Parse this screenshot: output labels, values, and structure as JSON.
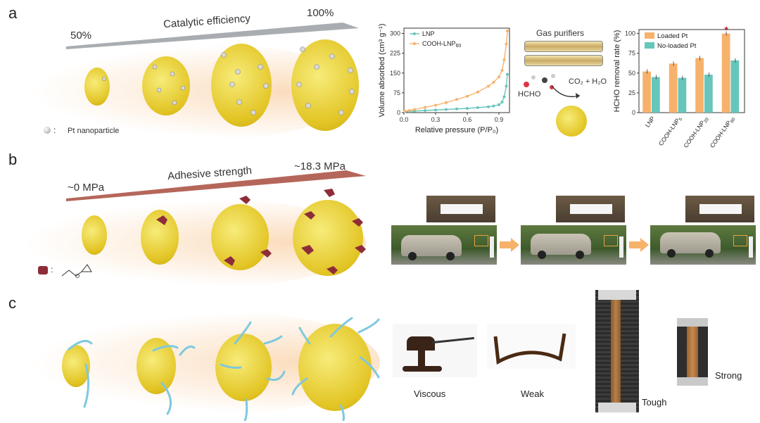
{
  "panels": {
    "a": {
      "letter": "a",
      "arrow": {
        "label": "Catalytic efficiency",
        "start": "50%",
        "end": "100%"
      },
      "legend": "Pt nanoparticle",
      "legend_colon": ":",
      "purifier": {
        "title": "Gas purifiers",
        "molecule": "HCHO",
        "product": "CO₂ + H₂O"
      }
    },
    "b": {
      "letter": "b",
      "arrow": {
        "label": "Adhesive strength",
        "start": "~0 MPa",
        "end": "~18.3 MPa"
      },
      "legend_colon": ":"
    },
    "c": {
      "letter": "c",
      "captions": [
        "Viscous",
        "Weak",
        "Tough",
        "Strong"
      ]
    }
  },
  "colors": {
    "accent_orange": "#f6b26b",
    "accent_teal": "#66c6bb",
    "particle_yellow": "#f2dc3a",
    "arrow_red": "#b5665a"
  },
  "chart_data": [
    {
      "type": "line",
      "xlabel": "Relative pressure (P/P₀)",
      "ylabel": "Volume absorbed (cm³ g⁻¹)",
      "xlim": [
        0,
        1.0
      ],
      "ylim": [
        0,
        320
      ],
      "xticks": [
        "0.0",
        "0.3",
        "0.6",
        "0.9"
      ],
      "yticks": [
        "0",
        "75",
        "150",
        "225",
        "300"
      ],
      "series": [
        {
          "name": "LNP",
          "color": "#66c6bb",
          "x": [
            0.01,
            0.05,
            0.1,
            0.2,
            0.3,
            0.4,
            0.5,
            0.6,
            0.7,
            0.8,
            0.85,
            0.9,
            0.93,
            0.95,
            0.97,
            0.98
          ],
          "y": [
            3,
            5,
            6,
            8,
            10,
            12,
            14,
            16,
            19,
            22,
            25,
            30,
            40,
            60,
            100,
            145
          ]
        },
        {
          "name": "COOH-LNP",
          "name_sub": "60",
          "color": "#f6b26b",
          "x": [
            0.01,
            0.05,
            0.1,
            0.2,
            0.3,
            0.4,
            0.5,
            0.6,
            0.7,
            0.8,
            0.85,
            0.9,
            0.93,
            0.95,
            0.97,
            0.98
          ],
          "y": [
            5,
            8,
            12,
            20,
            28,
            38,
            50,
            62,
            78,
            100,
            115,
            135,
            160,
            200,
            260,
            310
          ]
        }
      ]
    },
    {
      "type": "bar",
      "ylabel": "HCHO removal rate (%)",
      "ylim": [
        0,
        105
      ],
      "yticks": [
        "0",
        "25",
        "50",
        "75",
        "100"
      ],
      "categories": [
        "LNP",
        "COOH-LNP5",
        "COOH-LNP20",
        "COOH-LNP60"
      ],
      "series": [
        {
          "name": "Loaded Pt",
          "color": "#f6b26b",
          "values": [
            52,
            62,
            69,
            100
          ]
        },
        {
          "name": "No-loaded Pt",
          "color": "#66c6bb",
          "values": [
            45,
            44,
            48,
            66
          ]
        }
      ],
      "annotation": "★"
    }
  ]
}
